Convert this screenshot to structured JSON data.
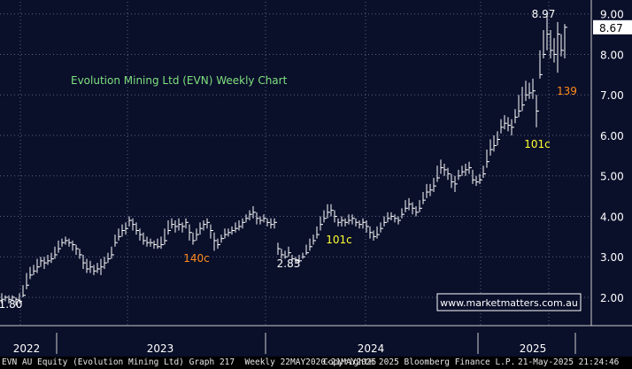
{
  "chart_data": {
    "type": "bar",
    "title": "Evolution Mining Ltd (EVN) Weekly Chart",
    "ylim": [
      1.3,
      9.3
    ],
    "y_ticks": [
      "2.00",
      "3.00",
      "4.00",
      "5.00",
      "6.00",
      "7.00",
      "8.00",
      "9.00"
    ],
    "x_tick_labels": [
      "2022",
      "2023",
      "2024",
      "2025"
    ],
    "last_price": "8.67",
    "annotations": [
      {
        "text": "8.97",
        "color": "#ffffff"
      },
      {
        "text": "139",
        "color": "#ff8c1a"
      },
      {
        "text": "101c",
        "color": "#ffff33"
      },
      {
        "text": "140c",
        "color": "#ff8c1a"
      },
      {
        "text": "2.83",
        "color": "#ffffff"
      },
      {
        "text": "101c",
        "color": "#ffff33"
      },
      {
        "text": "1.80",
        "color": "#ffffff"
      }
    ],
    "series": [
      {
        "values": [
          [
            0,
            1.95,
            2.1,
            1.85
          ],
          [
            4,
            2.0,
            2.05,
            1.9
          ],
          [
            8,
            1.95,
            2.05,
            1.85
          ],
          [
            12,
            2.0,
            2.05,
            1.9
          ],
          [
            16,
            1.95,
            2.0,
            1.8
          ],
          [
            20,
            1.9,
            2.1,
            1.85
          ],
          [
            24,
            2.05,
            2.3,
            2.0
          ],
          [
            28,
            2.3,
            2.6,
            2.2
          ],
          [
            32,
            2.55,
            2.75,
            2.45
          ],
          [
            36,
            2.65,
            2.8,
            2.55
          ],
          [
            40,
            2.75,
            2.95,
            2.6
          ],
          [
            44,
            2.9,
            3.0,
            2.75
          ],
          [
            48,
            2.85,
            3.0,
            2.7
          ],
          [
            52,
            2.9,
            3.05,
            2.8
          ],
          [
            56,
            2.95,
            3.1,
            2.85
          ],
          [
            60,
            3.05,
            3.25,
            2.95
          ],
          [
            64,
            3.2,
            3.4,
            3.1
          ],
          [
            68,
            3.35,
            3.45,
            3.25
          ],
          [
            72,
            3.4,
            3.5,
            3.3
          ],
          [
            76,
            3.35,
            3.45,
            3.25
          ],
          [
            80,
            3.3,
            3.4,
            3.15
          ],
          [
            84,
            3.2,
            3.3,
            3.05
          ],
          [
            88,
            3.05,
            3.2,
            2.95
          ],
          [
            92,
            2.85,
            3.05,
            2.7
          ],
          [
            96,
            2.7,
            2.95,
            2.6
          ],
          [
            100,
            2.75,
            2.9,
            2.6
          ],
          [
            104,
            2.65,
            2.8,
            2.55
          ],
          [
            108,
            2.7,
            2.85,
            2.6
          ],
          [
            112,
            2.75,
            2.95,
            2.55
          ],
          [
            116,
            2.85,
            3.0,
            2.7
          ],
          [
            120,
            2.95,
            3.1,
            2.85
          ],
          [
            124,
            3.05,
            3.25,
            2.95
          ],
          [
            128,
            3.35,
            3.55,
            3.25
          ],
          [
            132,
            3.5,
            3.7,
            3.4
          ],
          [
            136,
            3.65,
            3.8,
            3.5
          ],
          [
            140,
            3.7,
            3.85,
            3.55
          ],
          [
            144,
            3.9,
            4.0,
            3.75
          ],
          [
            148,
            3.8,
            3.95,
            3.65
          ],
          [
            152,
            3.65,
            3.85,
            3.55
          ],
          [
            156,
            3.55,
            3.7,
            3.4
          ],
          [
            160,
            3.4,
            3.6,
            3.3
          ],
          [
            164,
            3.35,
            3.5,
            3.25
          ],
          [
            168,
            3.35,
            3.45,
            3.25
          ],
          [
            172,
            3.3,
            3.4,
            3.2
          ],
          [
            176,
            3.25,
            3.45,
            3.2
          ],
          [
            180,
            3.3,
            3.5,
            3.2
          ],
          [
            184,
            3.4,
            3.7,
            3.3
          ],
          [
            188,
            3.65,
            3.9,
            3.55
          ],
          [
            192,
            3.8,
            3.95,
            3.7
          ],
          [
            196,
            3.75,
            3.9,
            3.6
          ],
          [
            200,
            3.8,
            3.95,
            3.65
          ],
          [
            204,
            3.75,
            3.85,
            3.6
          ],
          [
            208,
            3.85,
            3.95,
            3.7
          ],
          [
            212,
            3.6,
            3.8,
            3.4
          ],
          [
            216,
            3.4,
            3.6,
            3.3
          ],
          [
            220,
            3.55,
            3.7,
            3.4
          ],
          [
            224,
            3.7,
            3.85,
            3.55
          ],
          [
            228,
            3.8,
            3.9,
            3.65
          ],
          [
            232,
            3.85,
            3.95,
            3.7
          ],
          [
            236,
            3.65,
            3.8,
            3.45
          ],
          [
            240,
            3.4,
            3.6,
            3.15
          ],
          [
            244,
            3.3,
            3.45,
            3.2
          ],
          [
            248,
            3.45,
            3.55,
            3.35
          ],
          [
            252,
            3.55,
            3.7,
            3.45
          ],
          [
            256,
            3.6,
            3.7,
            3.5
          ],
          [
            260,
            3.65,
            3.75,
            3.55
          ],
          [
            264,
            3.7,
            3.85,
            3.6
          ],
          [
            268,
            3.75,
            3.9,
            3.65
          ],
          [
            272,
            3.85,
            3.95,
            3.7
          ],
          [
            276,
            3.95,
            4.05,
            3.85
          ],
          [
            280,
            4.05,
            4.15,
            3.9
          ],
          [
            284,
            4.1,
            4.25,
            3.95
          ],
          [
            288,
            3.95,
            4.1,
            3.8
          ],
          [
            292,
            3.9,
            4.0,
            3.8
          ],
          [
            296,
            3.95,
            4.05,
            3.85
          ],
          [
            300,
            3.85,
            3.95,
            3.75
          ],
          [
            304,
            3.8,
            3.95,
            3.7
          ],
          [
            308,
            3.85,
            3.95,
            3.7
          ],
          [
            312,
            3.2,
            3.35,
            3.05
          ],
          [
            316,
            3.05,
            3.2,
            2.95
          ],
          [
            320,
            3.0,
            3.15,
            2.95
          ],
          [
            324,
            3.1,
            3.25,
            3.0
          ],
          [
            328,
            2.95,
            3.05,
            2.9
          ],
          [
            332,
            2.9,
            3.0,
            2.83
          ],
          [
            336,
            2.9,
            3.05,
            2.85
          ],
          [
            340,
            3.0,
            3.1,
            2.95
          ],
          [
            344,
            3.1,
            3.3,
            3.05
          ],
          [
            348,
            3.25,
            3.45,
            3.15
          ],
          [
            352,
            3.4,
            3.55,
            3.3
          ],
          [
            356,
            3.55,
            3.75,
            3.45
          ],
          [
            360,
            3.8,
            4.0,
            3.65
          ],
          [
            364,
            3.95,
            4.15,
            3.85
          ],
          [
            368,
            4.1,
            4.3,
            3.95
          ],
          [
            372,
            4.15,
            4.3,
            4.0
          ],
          [
            376,
            4.0,
            4.15,
            3.85
          ],
          [
            380,
            3.85,
            3.95,
            3.75
          ],
          [
            384,
            3.9,
            4.0,
            3.75
          ],
          [
            388,
            3.85,
            3.95,
            3.75
          ],
          [
            392,
            3.9,
            4.05,
            3.8
          ],
          [
            396,
            3.95,
            4.05,
            3.8
          ],
          [
            400,
            3.85,
            3.95,
            3.75
          ],
          [
            404,
            3.8,
            3.9,
            3.7
          ],
          [
            408,
            3.85,
            3.95,
            3.7
          ],
          [
            412,
            3.75,
            3.9,
            3.6
          ],
          [
            416,
            3.6,
            3.75,
            3.45
          ],
          [
            420,
            3.5,
            3.65,
            3.4
          ],
          [
            424,
            3.55,
            3.75,
            3.45
          ],
          [
            428,
            3.7,
            3.85,
            3.6
          ],
          [
            432,
            3.85,
            4.0,
            3.75
          ],
          [
            436,
            3.95,
            4.1,
            3.85
          ],
          [
            440,
            4.0,
            4.1,
            3.9
          ],
          [
            444,
            3.95,
            4.05,
            3.85
          ],
          [
            448,
            3.9,
            4.0,
            3.8
          ],
          [
            452,
            4.05,
            4.2,
            3.95
          ],
          [
            456,
            4.2,
            4.4,
            4.1
          ],
          [
            460,
            4.3,
            4.45,
            4.15
          ],
          [
            464,
            4.2,
            4.35,
            4.05
          ],
          [
            468,
            4.1,
            4.25,
            4.0
          ],
          [
            472,
            4.2,
            4.4,
            4.1
          ],
          [
            476,
            4.4,
            4.6,
            4.3
          ],
          [
            480,
            4.6,
            4.8,
            4.45
          ],
          [
            484,
            4.65,
            4.8,
            4.5
          ],
          [
            488,
            4.75,
            4.95,
            4.6
          ],
          [
            492,
            4.95,
            5.25,
            4.85
          ],
          [
            496,
            5.2,
            5.4,
            5.05
          ],
          [
            500,
            5.15,
            5.3,
            5.0
          ],
          [
            504,
            5.05,
            5.2,
            4.9
          ],
          [
            508,
            4.85,
            5.05,
            4.7
          ],
          [
            512,
            4.8,
            5.0,
            4.6
          ],
          [
            516,
            5.0,
            5.15,
            4.9
          ],
          [
            520,
            5.1,
            5.25,
            5.0
          ],
          [
            524,
            5.15,
            5.3,
            5.0
          ],
          [
            528,
            5.2,
            5.35,
            5.05
          ],
          [
            532,
            4.9,
            5.15,
            4.8
          ],
          [
            536,
            4.85,
            5.0,
            4.75
          ],
          [
            540,
            4.9,
            5.05,
            4.8
          ],
          [
            544,
            5.05,
            5.25,
            4.95
          ],
          [
            548,
            5.35,
            5.65,
            5.2
          ],
          [
            552,
            5.65,
            5.9,
            5.5
          ],
          [
            556,
            5.75,
            6.0,
            5.6
          ],
          [
            560,
            5.9,
            6.1,
            5.75
          ],
          [
            564,
            6.2,
            6.4,
            6.05
          ],
          [
            568,
            6.3,
            6.5,
            6.15
          ],
          [
            572,
            6.25,
            6.45,
            6.1
          ],
          [
            576,
            6.2,
            6.4,
            6.0
          ],
          [
            580,
            6.45,
            6.65,
            6.3
          ],
          [
            584,
            6.6,
            7.0,
            6.45
          ],
          [
            588,
            6.75,
            7.2,
            6.6
          ],
          [
            592,
            7.0,
            7.35,
            6.85
          ],
          [
            596,
            7.05,
            7.3,
            6.9
          ],
          [
            600,
            7.1,
            7.4,
            6.9
          ],
          [
            604,
            6.6,
            7.0,
            6.2
          ],
          [
            608,
            7.5,
            8.1,
            7.4
          ],
          [
            612,
            8.0,
            8.6,
            7.9
          ],
          [
            616,
            8.5,
            8.97,
            8.1
          ],
          [
            620,
            8.1,
            8.6,
            7.9
          ],
          [
            624,
            8.0,
            8.4,
            7.8
          ],
          [
            628,
            8.5,
            8.8,
            7.55
          ],
          [
            632,
            8.1,
            8.5,
            7.95
          ],
          [
            636,
            8.67,
            8.75,
            7.9
          ]
        ]
      }
    ]
  },
  "source": {
    "watermark": "www.marketmatters.com.au"
  },
  "footer": {
    "left": "EVN AU Equity (Evolution Mining Ltd) Graph 217  Weekly 22MAY2020-21MAY2025",
    "center": "Copyright® 2025 Bloomberg Finance L.P.",
    "right": "21-May-2025 21:24:46"
  },
  "colors": {
    "background": "#0a0f2a",
    "bars": "#ffffff",
    "grid": "#5a6080",
    "title": "#7fe07f",
    "watermark_border": "#ffffff",
    "watermark_text": "#ffffff"
  }
}
